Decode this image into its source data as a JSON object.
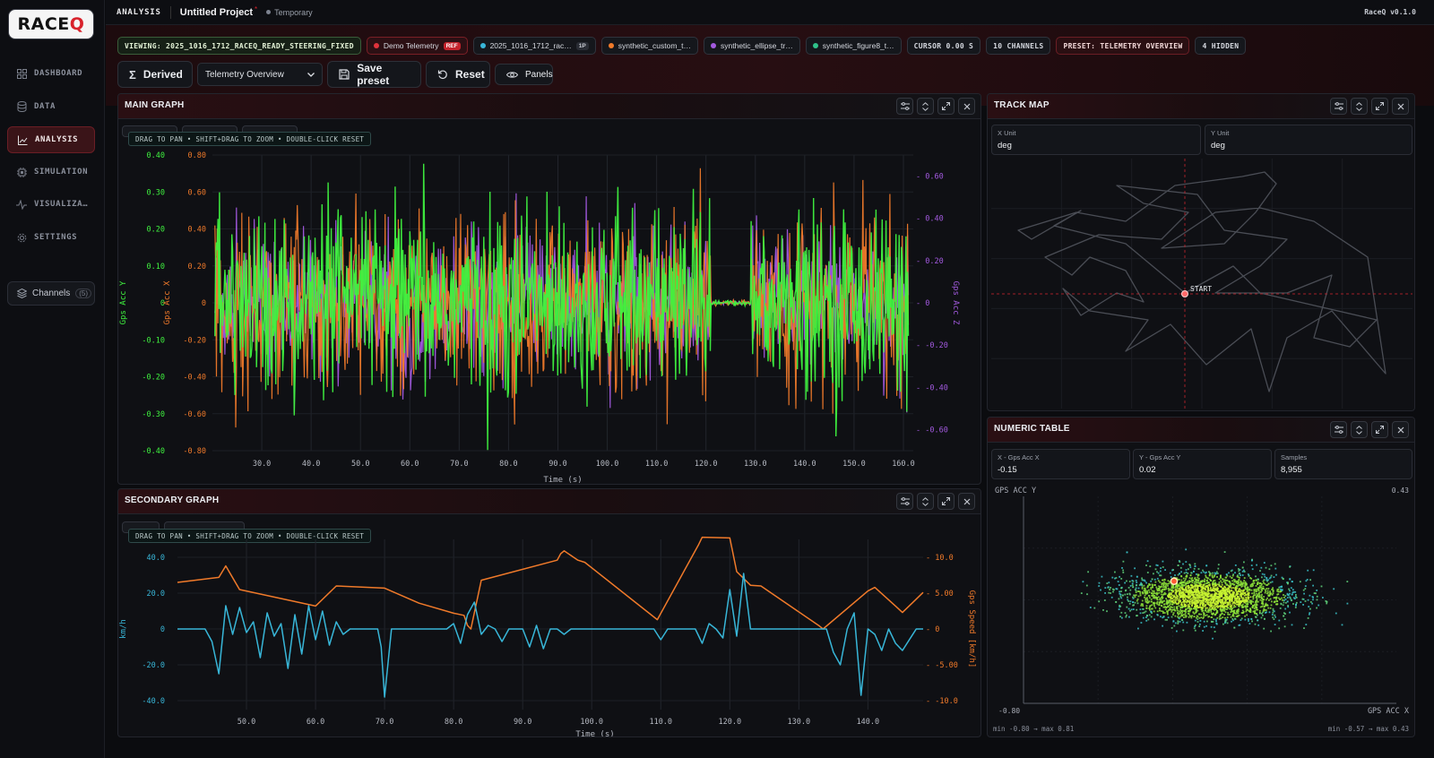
{
  "app": {
    "section": "ANALYSIS",
    "project_title": "Untitled Project",
    "modified_marker": "*",
    "status": "Temporary",
    "version": "RaceQ v0.1.0",
    "logo_text_a": "RACE",
    "logo_text_b": "Q"
  },
  "sidebar": {
    "items": [
      {
        "label": "DASHBOARD",
        "icon": "grid-icon"
      },
      {
        "label": "DATA",
        "icon": "database-icon"
      },
      {
        "label": "ANALYSIS",
        "icon": "chart-line-icon",
        "active": true
      },
      {
        "label": "SIMULATION",
        "icon": "cpu-icon"
      },
      {
        "label": "VISUALIZA…",
        "icon": "activity-icon"
      },
      {
        "label": "SETTINGS",
        "icon": "gear-icon"
      }
    ],
    "channels": {
      "label": "Channels",
      "count": "(5)"
    }
  },
  "chips": {
    "viewing": "VIEWING: 2025_1016_1712_RACEQ_READY_STEERING_FIXED",
    "demo": {
      "label": "Demo Telemetry",
      "tag": "REF",
      "color": "#e0333c"
    },
    "session": {
      "label": "2025_1016_1712_rac…",
      "tag": "1P",
      "color": "#38b6d8"
    },
    "synth1": {
      "label": "synthetic_custom_t…",
      "color": "#f07a2a"
    },
    "synth2": {
      "label": "synthetic_ellipse_tr…",
      "color": "#a35ae0"
    },
    "synth3": {
      "label": "synthetic_figure8_t…",
      "color": "#2fc28a"
    },
    "cursor": "CURSOR 0.00 S",
    "channels": "10 CHANNELS",
    "preset": "PRESET: TELEMETRY OVERVIEW",
    "hidden": "4 HIDDEN"
  },
  "toolbar": {
    "derived": "Derived",
    "preset_select": "Telemetry Overview",
    "save": "Save preset",
    "reset": "Reset",
    "panels": "Panels"
  },
  "main_graph": {
    "title": "MAIN GRAPH",
    "hint": "DRAG TO PAN • SHIFT+DRAG TO ZOOM • DOUBLE-CLICK RESET",
    "colors": {
      "acc_y": "#3ff23f",
      "acc_x": "#f07a2a",
      "acc_z": "#a35ae0"
    }
  },
  "secondary_graph": {
    "title": "SECONDARY GRAPH",
    "hint": "DRAG TO PAN • SHIFT+DRAG TO ZOOM • DOUBLE-CLICK RESET",
    "colors": {
      "left": "#38b6d8",
      "speed": "#f07a2a"
    }
  },
  "track_map": {
    "title": "TRACK MAP",
    "x_unit_label": "X Unit",
    "x_unit_value": "deg",
    "y_unit_label": "Y Unit",
    "y_unit_value": "deg",
    "start_label": "START"
  },
  "numeric_table": {
    "title": "NUMERIC TABLE",
    "fields": [
      {
        "label": "X - Gps Acc X",
        "value": "-0.15"
      },
      {
        "label": "Y - Gps Acc Y",
        "value": "0.02"
      },
      {
        "label": "Samples",
        "value": "8,955"
      }
    ],
    "scatter_ylabel": "GPS ACC Y",
    "scatter_xlabel": "GPS ACC X",
    "ymax_label": "0.43",
    "xmin_label": "-0.80",
    "footer_left": "min -0.80 → max 0.81",
    "footer_right": "min -0.57 → max 0.43"
  },
  "chart_data": [
    {
      "type": "line",
      "name": "main-graph",
      "xlabel": "Time (s)",
      "x_ticks": [
        "30.0",
        "40.0",
        "50.0",
        "60.0",
        "70.0",
        "80.0",
        "90.0",
        "100.0",
        "110.0",
        "120.0",
        "130.0",
        "140.0",
        "150.0",
        "160.0"
      ],
      "xlim": [
        20,
        162
      ],
      "axes": [
        {
          "label": "Gps Acc Y",
          "side": "left-outer",
          "ticks": [
            "0.40",
            "0.30",
            "0.20",
            "0.10",
            "0",
            "-0.10",
            "-0.20",
            "-0.30",
            "-0.40"
          ],
          "ylim": [
            -0.4,
            0.4
          ]
        },
        {
          "label": "Gps Acc X",
          "side": "left-inner",
          "ticks": [
            "0.80",
            "0.60",
            "0.40",
            "0.20",
            "0",
            "-0.20",
            "-0.40",
            "-0.60",
            "-0.80"
          ],
          "ylim": [
            -0.8,
            0.8
          ]
        },
        {
          "label": "Gps Acc Z",
          "side": "right",
          "ticks": [
            "0.60",
            "0.40",
            "0.20",
            "0",
            "-0.20",
            "-0.40",
            "-0.60"
          ],
          "ylim": [
            -0.7,
            0.7
          ]
        }
      ],
      "quiet_interval": [
        121,
        129
      ]
    },
    {
      "type": "line",
      "name": "secondary-graph",
      "xlabel": "Time (s)",
      "x_ticks": [
        "50.0",
        "60.0",
        "70.0",
        "80.0",
        "90.0",
        "100.0",
        "110.0",
        "120.0",
        "130.0",
        "140.0"
      ],
      "xlim": [
        40,
        148
      ],
      "left_axis": {
        "label": "km/h",
        "ticks": [
          "40.0",
          "20.0",
          "0",
          "-20.0",
          "-40.0"
        ],
        "ylim": [
          -45,
          50
        ]
      },
      "right_axis": {
        "label": "Gps Speed [km/h]",
        "ticks": [
          "10.0",
          "5.00",
          "0",
          "-5.00",
          "-10.0"
        ],
        "ylim": [
          -12,
          12
        ]
      },
      "series": [
        {
          "name": "Gps Speed [km/h]",
          "axis": "right",
          "x": [
            40,
            46,
            47,
            49,
            60,
            63,
            70,
            75,
            80,
            81.5,
            82,
            82.5,
            84,
            95,
            95.5,
            96,
            98,
            99,
            109.5,
            115.5,
            116,
            120,
            121,
            123,
            124.5,
            133,
            133.5,
            140,
            141,
            144,
            145,
            148
          ],
          "y": [
            6.5,
            7.2,
            8.8,
            5.5,
            3.2,
            6.0,
            5.7,
            3.6,
            2.2,
            1.9,
            0.5,
            0.0,
            6.8,
            9.6,
            10.5,
            10.9,
            9.6,
            9.3,
            1.3,
            11.8,
            12.8,
            12.7,
            8.0,
            6.1,
            6.0,
            0.4,
            0.0,
            5.3,
            5.8,
            3.2,
            2.3,
            5.1
          ]
        },
        {
          "name": "km/h",
          "axis": "left",
          "x": [
            40,
            44,
            45,
            46,
            47,
            48,
            49,
            50,
            51,
            52,
            53,
            54,
            55,
            56,
            57,
            58,
            59,
            60,
            61,
            62,
            63,
            64,
            65,
            66,
            69,
            69.5,
            70,
            71,
            75,
            79,
            80,
            81,
            82,
            83,
            84,
            85,
            86,
            87,
            88,
            90,
            91,
            92,
            93,
            94,
            95,
            96,
            97,
            98,
            100,
            105,
            109,
            110,
            111,
            114,
            115,
            116,
            117,
            118,
            119,
            120,
            121,
            122,
            123,
            125,
            130,
            134,
            135,
            136,
            137,
            138,
            139,
            140,
            141,
            142,
            143,
            144,
            145,
            147,
            148
          ],
          "y": [
            0,
            0,
            -7,
            -25,
            13,
            -3,
            12,
            -2,
            4,
            -16,
            9,
            -4,
            3,
            -22,
            8,
            -14,
            13,
            -6,
            10,
            -9,
            4,
            -3,
            0,
            0,
            0,
            -10,
            -38,
            0,
            0,
            0,
            3,
            -8,
            8,
            15,
            -3,
            2,
            0,
            -7,
            0,
            0,
            -10,
            2,
            -11,
            0,
            0,
            -3,
            0,
            0,
            0,
            0,
            0,
            -6,
            0,
            0,
            0,
            -8,
            3,
            0,
            -5,
            22,
            -4,
            31,
            0,
            0,
            0,
            0,
            -13,
            -20,
            0,
            9,
            -37,
            0,
            -3,
            -12,
            0,
            -8,
            -12,
            0,
            0
          ]
        }
      ]
    },
    {
      "type": "scatter",
      "name": "numeric-table-scatter",
      "xlabel": "GPS ACC X",
      "ylabel": "GPS ACC Y",
      "xlim": [
        -0.8,
        0.81
      ],
      "ylim": [
        -0.57,
        0.43
      ],
      "cursor_point": {
        "x": -0.15,
        "y": 0.02
      },
      "samples": 8955
    }
  ]
}
